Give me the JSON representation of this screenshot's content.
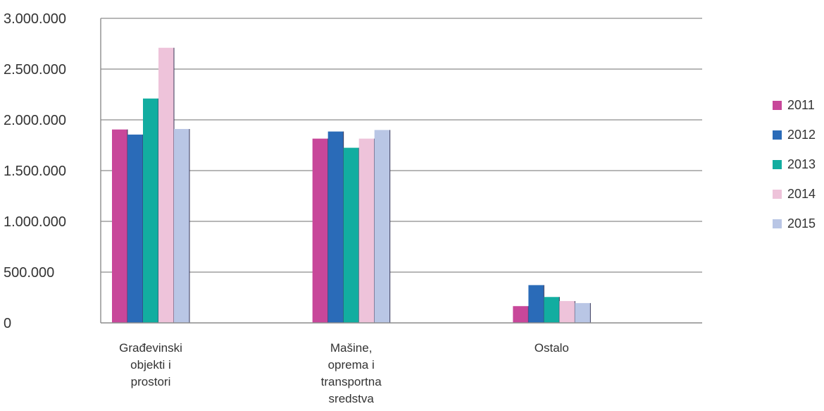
{
  "chart_data": {
    "type": "bar",
    "title": "",
    "xlabel": "",
    "ylabel": "",
    "categories": [
      [
        "Građevinski",
        "objekti i",
        "prostori"
      ],
      [
        "Mašine,",
        "oprema i",
        "transportna",
        "sredstva"
      ],
      [
        "Ostalo"
      ]
    ],
    "series": [
      {
        "name": "2011",
        "color": "#C8479A",
        "values": [
          1905000,
          1815000,
          165000
        ]
      },
      {
        "name": "2012",
        "color": "#2A6BB8",
        "values": [
          1855000,
          1885000,
          372000
        ]
      },
      {
        "name": "2013",
        "color": "#12ADA0",
        "values": [
          2210000,
          1725000,
          255000
        ]
      },
      {
        "name": "2014",
        "color": "#EEC3DA",
        "values": [
          2710000,
          1815000,
          215000
        ]
      },
      {
        "name": "2015",
        "color": "#B9C6E5",
        "values": [
          1910000,
          1900000,
          195000
        ]
      }
    ],
    "ylim": [
      0,
      3000000
    ],
    "yticks": [
      0,
      500000,
      1000000,
      1500000,
      2000000,
      2500000,
      3000000
    ],
    "ytick_labels": [
      "0",
      "500.000",
      "1.000.000",
      "1.500.000",
      "2.000.000",
      "2.500.000",
      "3.000.000"
    ],
    "grid": true,
    "legend_position": "right"
  }
}
